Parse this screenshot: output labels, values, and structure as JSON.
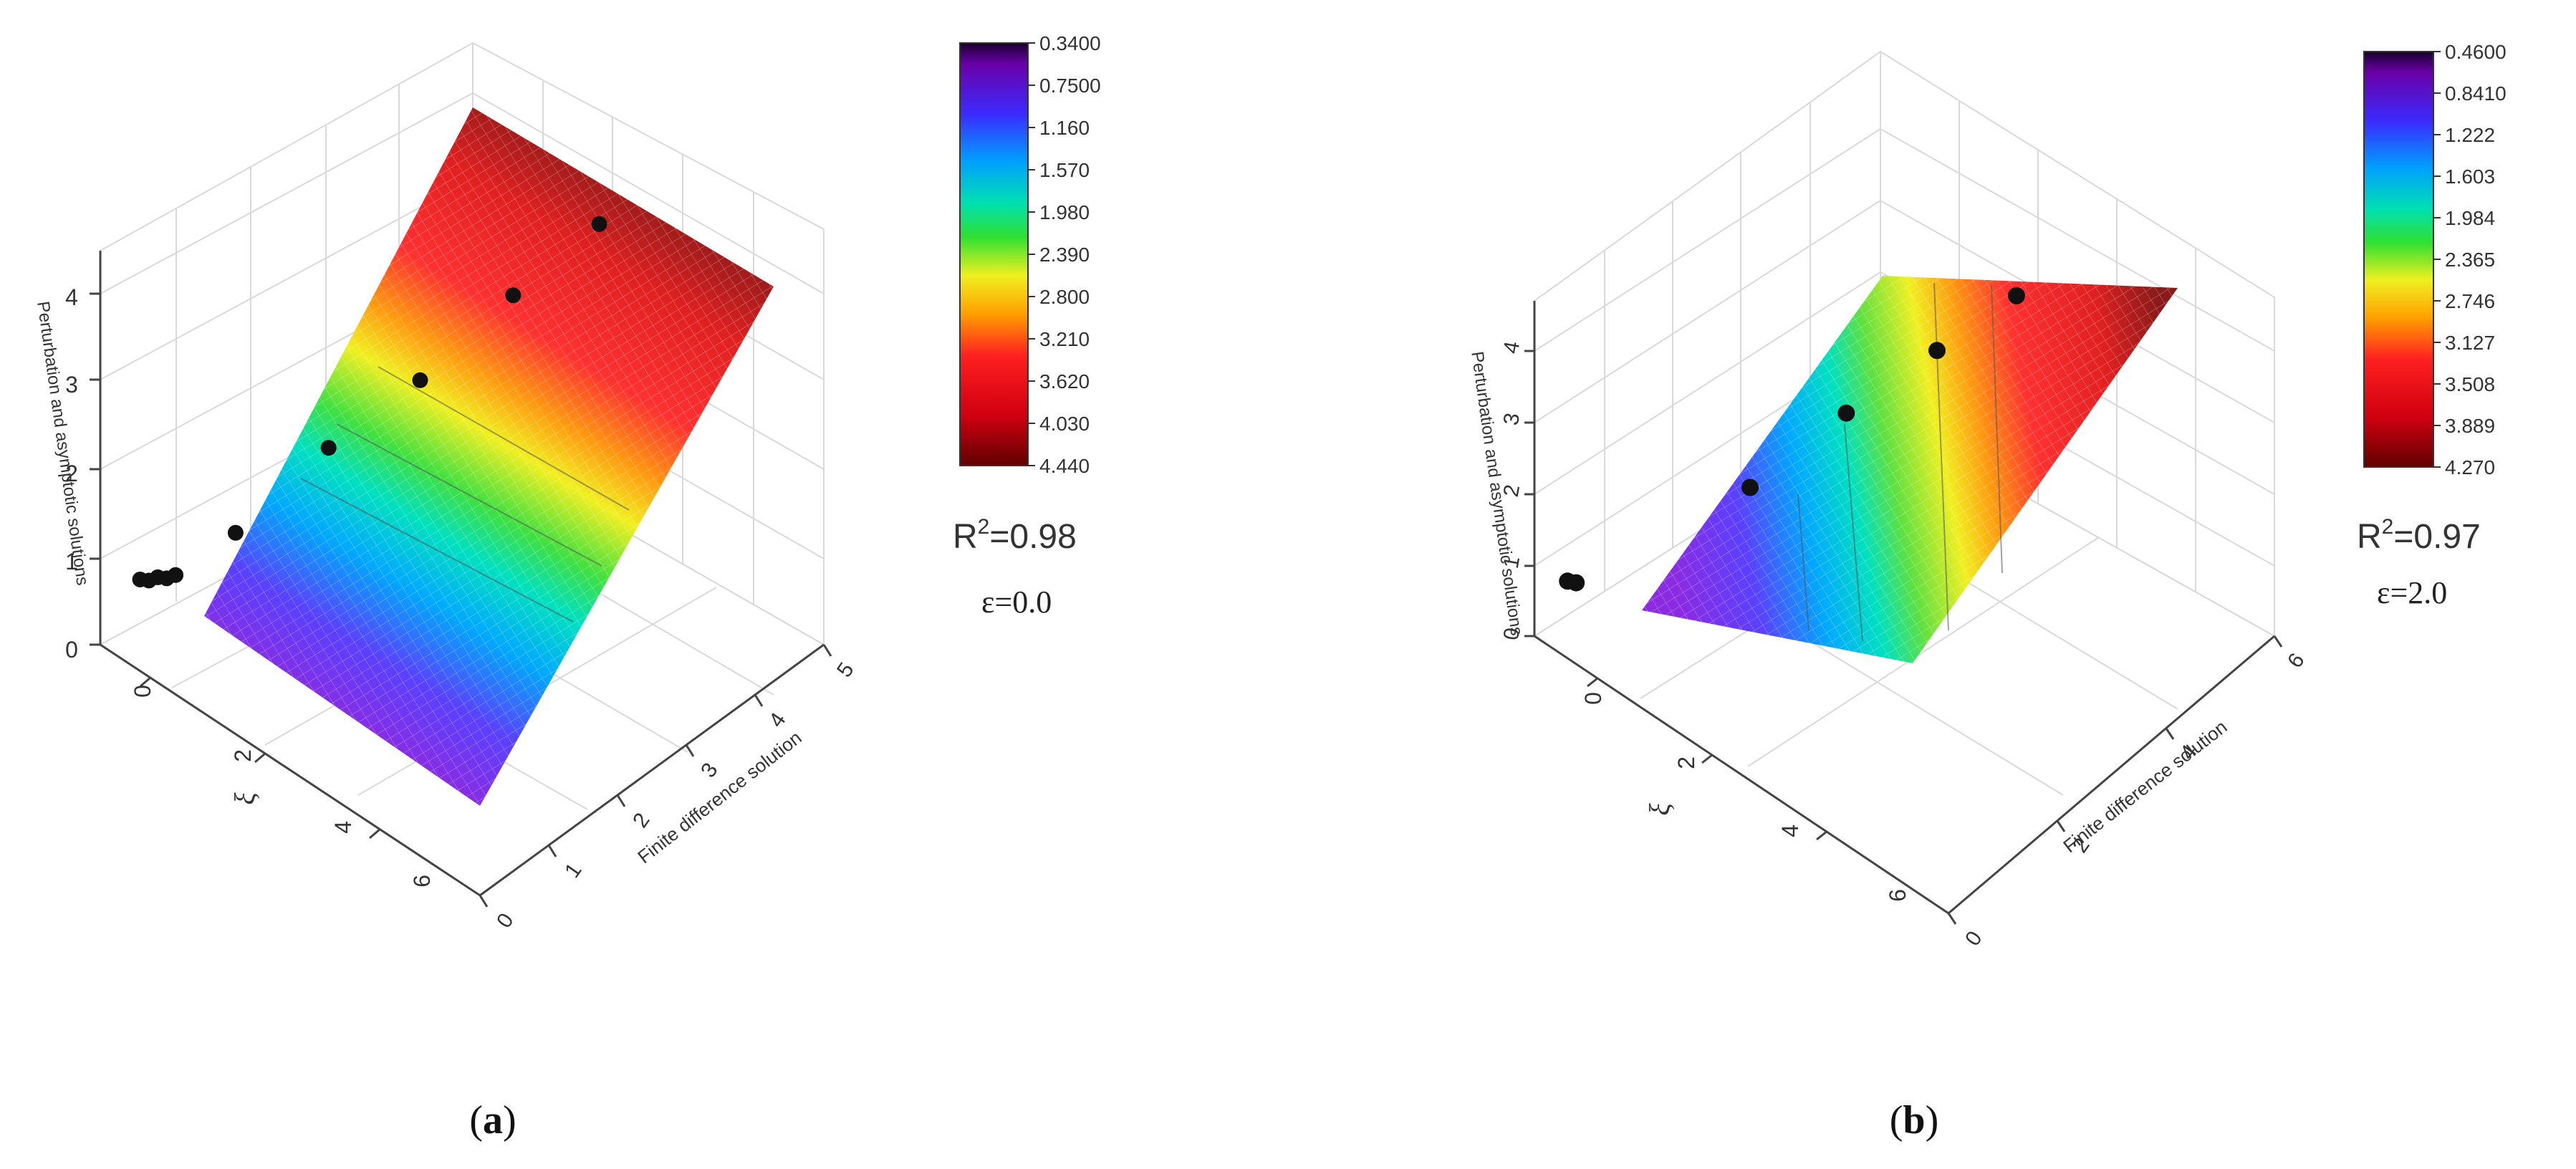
{
  "chart_data": [
    {
      "panel_label": "(a)",
      "type": "surface3d",
      "xlabel": "Finite difference solution",
      "ylabel": "ξ",
      "zlabel": "Perturbation and asymptotic solutions",
      "x_ticks": [
        "0",
        "1",
        "2",
        "3",
        "4",
        "5"
      ],
      "y_ticks": [
        "0",
        "2",
        "4",
        "6"
      ],
      "z_ticks": [
        "0",
        "1",
        "2",
        "3",
        "4"
      ],
      "xlim": [
        0,
        5
      ],
      "ylim": [
        0,
        7
      ],
      "zlim": [
        0,
        4.5
      ],
      "r_squared": "R2=0.98",
      "r_squared_base": "R",
      "r_squared_exp": "2",
      "r_squared_val": "=0.98",
      "epsilon": "ε=0.0",
      "colorbar_ticks": [
        "0.3400",
        "0.7500",
        "1.160",
        "1.570",
        "1.980",
        "2.390",
        "2.800",
        "3.210",
        "3.620",
        "4.030",
        "4.440"
      ],
      "points": [
        {
          "x": 0.5,
          "y": 0.1,
          "z": 0.5
        },
        {
          "x": 0.55,
          "y": 0.2,
          "z": 0.5
        },
        {
          "x": 0.6,
          "y": 0.3,
          "z": 0.55
        },
        {
          "x": 0.65,
          "y": 0.4,
          "z": 0.55
        },
        {
          "x": 0.7,
          "y": 0.5,
          "z": 0.6
        },
        {
          "x": 1.1,
          "y": 1.1,
          "z": 1.1
        },
        {
          "x": 1.9,
          "y": 1.8,
          "z": 1.9
        },
        {
          "x": 2.6,
          "y": 2.6,
          "z": 2.6
        },
        {
          "x": 3.4,
          "y": 3.3,
          "z": 3.4
        },
        {
          "x": 4.1,
          "y": 4.0,
          "z": 4.1
        }
      ]
    },
    {
      "panel_label": "(b)",
      "type": "surface3d",
      "xlabel": "Finite difference solution",
      "ylabel": "ξ",
      "zlabel": "Perturbation and asymptotic solutions",
      "x_ticks": [
        "0",
        "2",
        "4",
        "6"
      ],
      "y_ticks": [
        "0",
        "2",
        "4",
        "6"
      ],
      "z_ticks": [
        "0",
        "1",
        "2",
        "3",
        "4"
      ],
      "xlim": [
        0,
        6
      ],
      "ylim": [
        0,
        7
      ],
      "zlim": [
        0,
        4.5
      ],
      "r_squared": "R2=0.97",
      "r_squared_base": "R",
      "r_squared_exp": "2",
      "r_squared_val": "=0.97",
      "epsilon": "ε=2.0",
      "colorbar_ticks": [
        "0.4600",
        "0.8410",
        "1.222",
        "1.603",
        "1.984",
        "2.365",
        "2.746",
        "3.127",
        "3.508",
        "3.889",
        "4.270"
      ],
      "points": [
        {
          "x": 0.5,
          "y": 0.1,
          "z": 0.5
        },
        {
          "x": 0.55,
          "y": 0.2,
          "z": 0.5
        },
        {
          "x": 1.9,
          "y": 1.9,
          "z": 1.9
        },
        {
          "x": 2.8,
          "y": 2.7,
          "z": 2.8
        },
        {
          "x": 3.6,
          "y": 3.5,
          "z": 3.6
        },
        {
          "x": 4.3,
          "y": 4.2,
          "z": 4.3
        }
      ]
    }
  ]
}
